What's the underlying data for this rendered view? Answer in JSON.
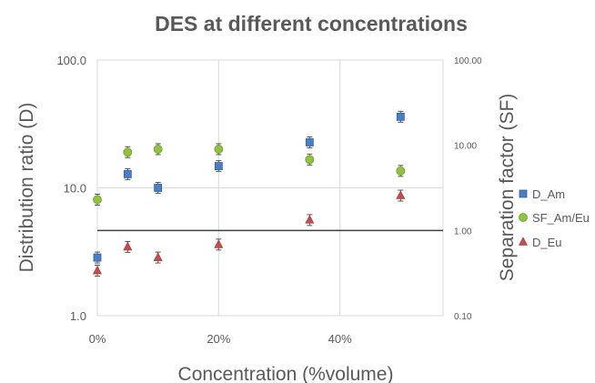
{
  "chart_data": {
    "type": "scatter",
    "title": "DES at different concentrations",
    "xlabel": "Concentration (%volume)",
    "ylabel": "Distribution ratio (D)",
    "y2label": "Separation factor (SF)",
    "x_ticks": [
      "0%",
      "20%",
      "40%"
    ],
    "y_ticks": [
      "1.0",
      "10.0",
      "100.0"
    ],
    "y2_ticks": [
      "0.10",
      "1.00",
      "10.00",
      "100.00"
    ],
    "xlim": [
      0,
      0.57
    ],
    "ylim": [
      1,
      100
    ],
    "y2lim": [
      0.1,
      100
    ],
    "y_scale": "log",
    "y2_scale": "log",
    "legend_position": "right",
    "reference_line_y2": 1.0,
    "series": [
      {
        "name": "D_Am",
        "axis": "left",
        "marker": "square",
        "color": "#4a7fc1",
        "x": [
          0,
          0.05,
          0.1,
          0.2,
          0.35,
          0.5
        ],
        "y": [
          2.85,
          12.8,
          10.0,
          14.8,
          22.7,
          36.0
        ]
      },
      {
        "name": "SF_Am/Eu",
        "axis": "right",
        "marker": "circle",
        "color": "#92c145",
        "x": [
          0,
          0.05,
          0.1,
          0.2,
          0.35,
          0.5
        ],
        "y": [
          2.3,
          8.3,
          9.0,
          9.0,
          6.8,
          5.0
        ]
      },
      {
        "name": "D_Eu",
        "axis": "left",
        "marker": "triangle",
        "color": "#c0504d",
        "x": [
          0,
          0.05,
          0.1,
          0.2,
          0.35,
          0.5
        ],
        "y": [
          2.25,
          3.45,
          2.85,
          3.6,
          5.6,
          8.7
        ]
      }
    ]
  }
}
